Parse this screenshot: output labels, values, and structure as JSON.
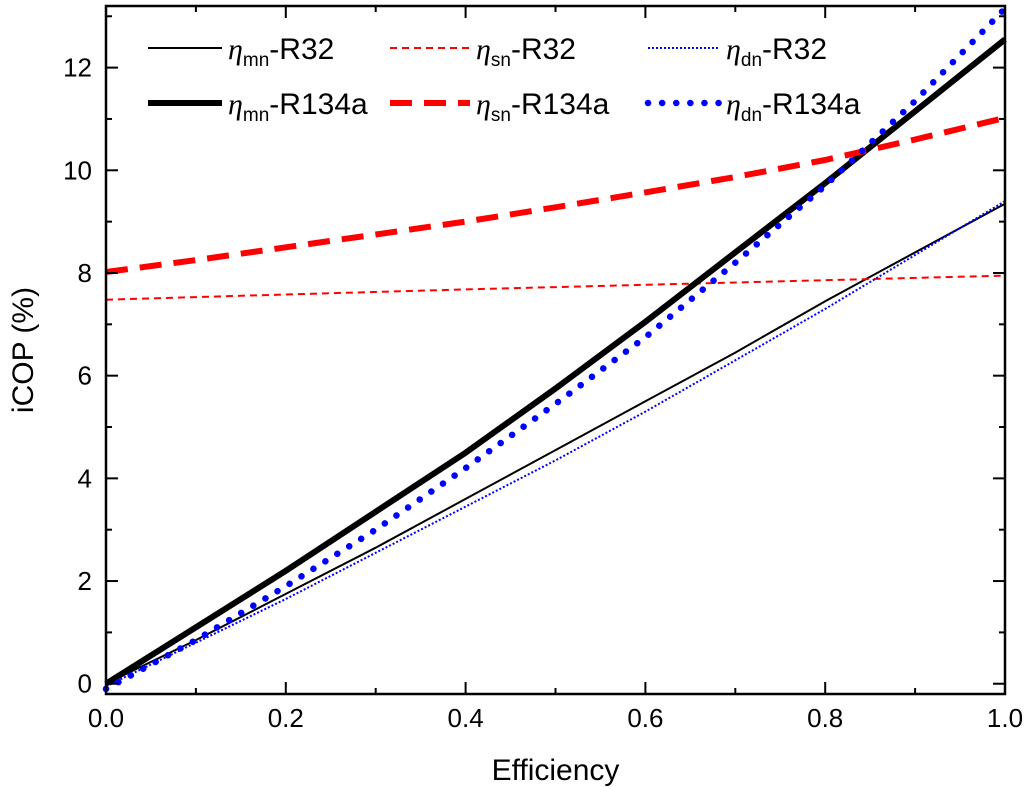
{
  "chart_data": {
    "type": "line",
    "title": "",
    "xlabel": "Efficiency",
    "ylabel": "iCOP (%)",
    "xlim": [
      0.0,
      1.0
    ],
    "ylim": [
      -0.2,
      13.2
    ],
    "x_ticks": [
      0.0,
      0.2,
      0.4,
      0.6,
      0.8,
      1.0
    ],
    "x_tick_labels": [
      "0.0",
      "0.2",
      "0.4",
      "0.6",
      "0.8",
      "1.0"
    ],
    "y_ticks": [
      0,
      2,
      4,
      6,
      8,
      10,
      12
    ],
    "y_tick_labels": [
      "0",
      "2",
      "4",
      "6",
      "8",
      "10",
      "12"
    ],
    "legend_position": "top",
    "series": [
      {
        "name": "ηmn-R32",
        "legend": {
          "symbol": "η",
          "subscript": "mn",
          "suffix": "-R32"
        },
        "color": "#000000",
        "style": "solid",
        "weight": "thin",
        "x": [
          0.0,
          0.1,
          0.2,
          0.3,
          0.4,
          0.5,
          0.6,
          0.7,
          0.8,
          0.9,
          1.0
        ],
        "y": [
          0.0,
          0.85,
          1.75,
          2.65,
          3.6,
          4.55,
          5.5,
          6.45,
          7.45,
          8.4,
          9.35
        ]
      },
      {
        "name": "ηsn-R32",
        "legend": {
          "symbol": "η",
          "subscript": "sn",
          "suffix": "-R32"
        },
        "color": "#ff0000",
        "style": "dashed",
        "weight": "thin",
        "x": [
          0.0,
          0.2,
          0.4,
          0.6,
          0.8,
          1.0
        ],
        "y": [
          7.48,
          7.58,
          7.68,
          7.77,
          7.86,
          7.95
        ]
      },
      {
        "name": "ηdn-R32",
        "legend": {
          "symbol": "η",
          "subscript": "dn",
          "suffix": "-R32"
        },
        "color": "#0000ff",
        "style": "dotted",
        "weight": "thin",
        "x": [
          0.0,
          0.1,
          0.2,
          0.3,
          0.4,
          0.5,
          0.6,
          0.7,
          0.8,
          0.9,
          1.0
        ],
        "y": [
          -0.05,
          0.8,
          1.65,
          2.55,
          3.45,
          4.35,
          5.3,
          6.3,
          7.3,
          8.35,
          9.4
        ]
      },
      {
        "name": "ηmn-R134a",
        "legend": {
          "symbol": "η",
          "subscript": "mn",
          "suffix": "-R134a"
        },
        "color": "#000000",
        "style": "solid",
        "weight": "thick",
        "x": [
          0.0,
          0.1,
          0.2,
          0.3,
          0.4,
          0.5,
          0.6,
          0.7,
          0.8,
          0.9,
          1.0
        ],
        "y": [
          0.0,
          1.1,
          2.2,
          3.35,
          4.5,
          5.75,
          7.05,
          8.4,
          9.75,
          11.15,
          12.55
        ]
      },
      {
        "name": "ηsn-R134a",
        "legend": {
          "symbol": "η",
          "subscript": "sn",
          "suffix": "-R134a"
        },
        "color": "#ff0000",
        "style": "dashed",
        "weight": "thick",
        "x": [
          0.0,
          0.1,
          0.2,
          0.3,
          0.4,
          0.5,
          0.6,
          0.7,
          0.8,
          0.9,
          1.0
        ],
        "y": [
          8.02,
          8.25,
          8.5,
          8.75,
          9.0,
          9.28,
          9.57,
          9.87,
          10.2,
          10.6,
          11.02
        ]
      },
      {
        "name": "ηdn-R134a",
        "legend": {
          "symbol": "η",
          "subscript": "dn",
          "suffix": "-R134a"
        },
        "color": "#0000ff",
        "style": "dotted",
        "weight": "thick",
        "x": [
          0.0,
          0.1,
          0.2,
          0.3,
          0.4,
          0.5,
          0.6,
          0.7,
          0.8,
          0.9,
          1.0
        ],
        "y": [
          -0.1,
          0.85,
          1.9,
          3.0,
          4.2,
          5.45,
          6.75,
          8.2,
          9.7,
          11.35,
          13.15
        ]
      }
    ]
  }
}
